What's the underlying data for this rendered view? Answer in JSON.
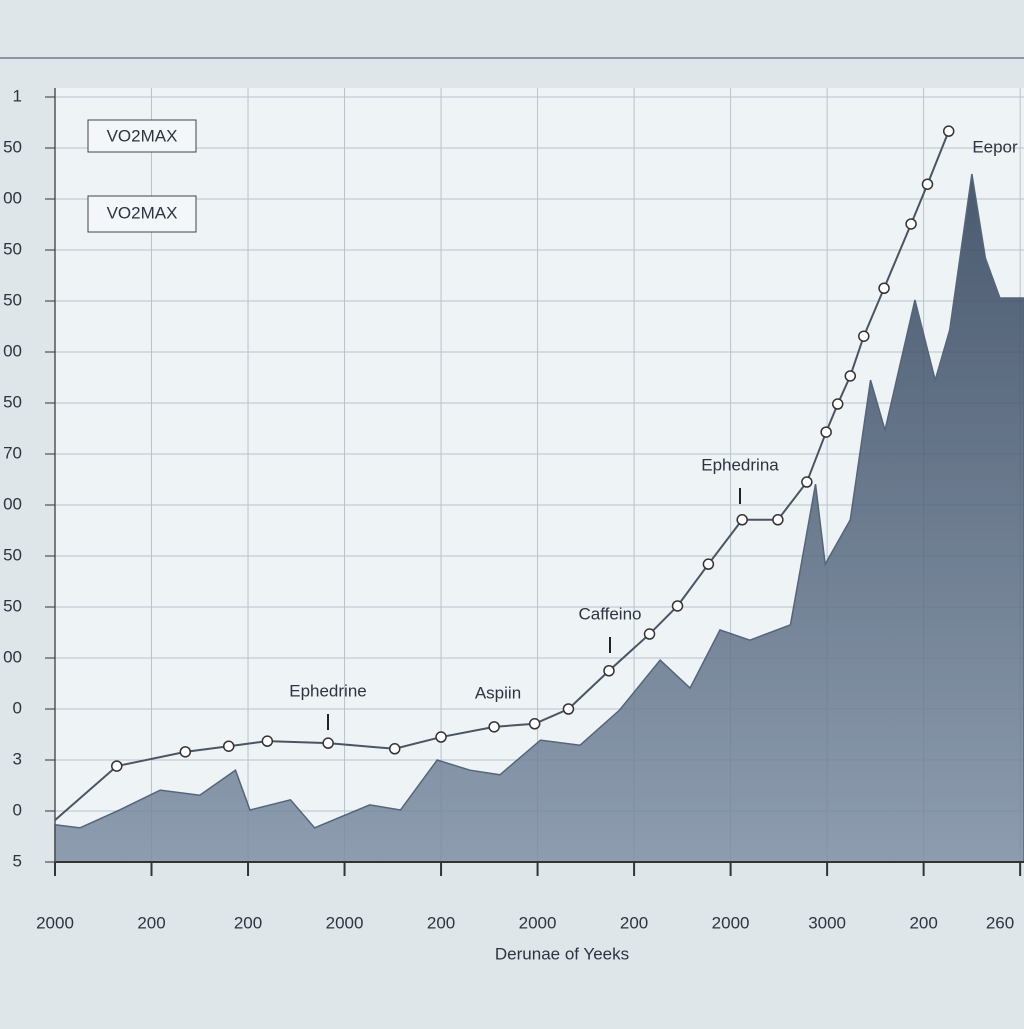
{
  "chart_data": {
    "type": "line",
    "x_label": "Derunae of Yeeks",
    "xlim": [
      0,
      10.04
    ],
    "ylim": [
      0,
      15
    ],
    "xticks": [
      {
        "value": 0,
        "label": "2000"
      },
      {
        "value": 1,
        "label": "200"
      },
      {
        "value": 2,
        "label": "200"
      },
      {
        "value": 3,
        "label": "2000"
      },
      {
        "value": 4,
        "label": "200"
      },
      {
        "value": 5,
        "label": "2000"
      },
      {
        "value": 6,
        "label": "200"
      },
      {
        "value": 7,
        "label": "2000"
      },
      {
        "value": 8,
        "label": "3000"
      },
      {
        "value": 9,
        "label": "200"
      },
      {
        "value": 10,
        "label": "260"
      }
    ],
    "yticks": [
      {
        "value": 0,
        "label": "5"
      },
      {
        "value": 1,
        "label": "0"
      },
      {
        "value": 2,
        "label": "3"
      },
      {
        "value": 3,
        "label": "0"
      },
      {
        "value": 4,
        "label": "00"
      },
      {
        "value": 5,
        "label": "50"
      },
      {
        "value": 6,
        "label": "50"
      },
      {
        "value": 7,
        "label": "00"
      },
      {
        "value": 8,
        "label": "70"
      },
      {
        "value": 9,
        "label": "50"
      },
      {
        "value": 10,
        "label": "00"
      },
      {
        "value": 11,
        "label": "50"
      },
      {
        "value": 12,
        "label": "50"
      },
      {
        "value": 13,
        "label": "00"
      },
      {
        "value": 14,
        "label": "50"
      },
      {
        "value": 15,
        "label": "1"
      }
    ],
    "grid": true,
    "series": [
      {
        "name": "VO2MAX",
        "color": "#4a5563",
        "x": [
          0,
          0.64,
          1.35,
          1.8,
          2.2,
          2.83,
          3.52,
          4.0,
          4.55,
          4.97,
          5.32,
          5.74,
          6.16,
          6.45,
          6.77,
          7.12,
          7.49,
          7.79,
          7.99,
          8.11,
          8.24,
          8.38,
          8.59,
          8.87,
          9.04,
          9.26
        ],
        "values": [
          0.82,
          1.88,
          2.16,
          2.27,
          2.37,
          2.33,
          2.22,
          2.45,
          2.65,
          2.71,
          3.0,
          3.75,
          4.47,
          5.02,
          5.84,
          6.71,
          6.71,
          7.45,
          8.43,
          8.98,
          9.53,
          10.31,
          11.25,
          12.51,
          13.29,
          14.33
        ]
      },
      {
        "name": "VO2MAX",
        "color": "#3b4d66",
        "x": [
          0,
          0.26,
          0.67,
          1.09,
          1.5,
          1.87,
          2.02,
          2.44,
          2.69,
          3.26,
          3.58,
          3.96,
          4.3,
          4.61,
          5.03,
          5.44,
          5.85,
          6.27,
          6.58,
          6.89,
          7.2,
          7.62,
          7.88,
          7.98,
          8.24,
          8.45,
          8.6,
          8.91,
          9.12,
          9.27,
          9.5,
          9.64,
          9.79,
          10.04
        ],
        "values": [
          0.73,
          0.67,
          1.02,
          1.41,
          1.31,
          1.8,
          1.02,
          1.22,
          0.67,
          1.12,
          1.02,
          2.0,
          1.8,
          1.71,
          2.39,
          2.29,
          2.98,
          3.96,
          3.41,
          4.55,
          4.35,
          4.65,
          7.41,
          5.84,
          6.71,
          9.45,
          8.47,
          11.02,
          9.45,
          10.43,
          13.49,
          11.84,
          11.06,
          11.06
        ]
      }
    ],
    "annotations": [
      "Ephedrine",
      "Aspiin",
      "Caffeino",
      "Ephedrina",
      "Eepor"
    ]
  }
}
